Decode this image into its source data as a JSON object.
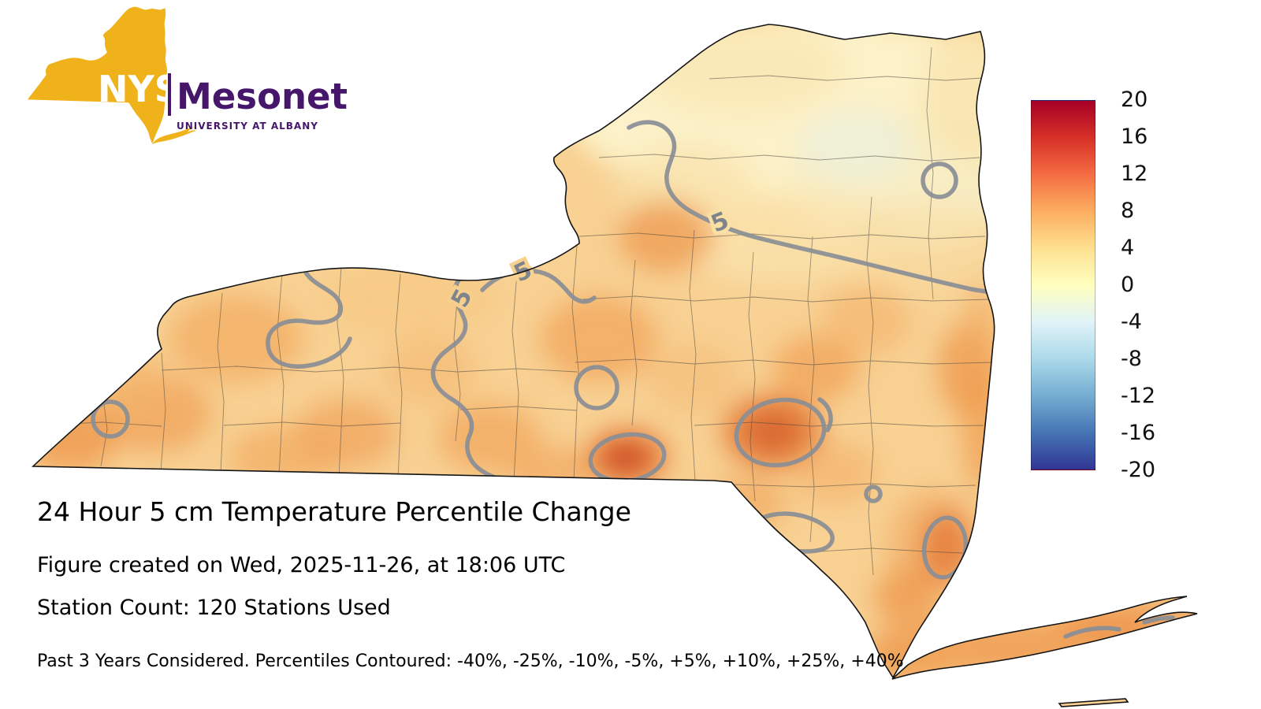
{
  "logo": {
    "acronym": "NYS",
    "name": "Mesonet",
    "institution": "UNIVERSITY AT ALBANY",
    "colors": {
      "gold": "#EFB21A",
      "purple": "#46166B",
      "acronym_text": "#FFFFFF"
    }
  },
  "title": "24 Hour 5 cm Temperature Percentile Change",
  "created_line": "Figure created on Wed, 2025-11-26, at 18:06 UTC",
  "station_line": "Station Count: 120 Stations Used",
  "footnote": "Past 3 Years Considered. Percentiles Contoured: -40%, -25%, -10%, -5%, +5%, +10%, +25%, +40%",
  "map": {
    "region": "New York State",
    "contour_label": "5",
    "contour_line_color": "#8A8E96",
    "outline_color": "#141414"
  },
  "colorbar": {
    "max": 20,
    "min": -20,
    "ticks": [
      "20",
      "16",
      "12",
      "8",
      "4",
      "0",
      "-4",
      "-8",
      "-12",
      "-16",
      "-20"
    ],
    "colors_top_to_bottom": [
      "#a50026",
      "#d73027",
      "#f46d43",
      "#fdae61",
      "#fee090",
      "#ffffbf",
      "#e0f3f8",
      "#abd9e9",
      "#74add1",
      "#4575b4",
      "#313695"
    ]
  }
}
